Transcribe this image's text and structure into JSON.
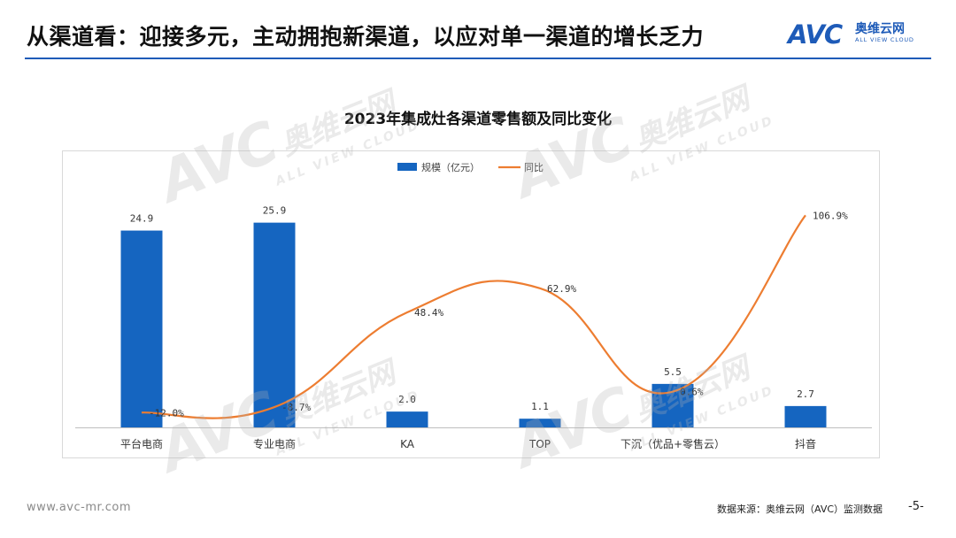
{
  "slide": {
    "title": "从渠道看：迎接多元，主动拥抱新渠道，以应对单一渠道的增长乏力",
    "logo": {
      "mark": "AVC",
      "cn": "奥维云网",
      "en": "ALL VIEW CLOUD"
    },
    "accent_color": "#1e5bb8"
  },
  "watermark": {
    "mark": "AVC",
    "cn": "奥维云网",
    "en": "ALL VIEW CLOUD"
  },
  "footer": {
    "url": "www.avc-mr.com",
    "source": "数据来源：奥维云网（AVC）监测数据",
    "page": "-5-"
  },
  "chart_data": {
    "type": "bar",
    "title": "2023年集成灶各渠道零售额及同比变化",
    "categories": [
      "平台电商",
      "专业电商",
      "KA",
      "TOP",
      "下沉（优品+零售云）",
      "抖音"
    ],
    "series": [
      {
        "name": "规模（亿元）",
        "type": "bar",
        "axis": "left",
        "color": "#1565c0",
        "values": [
          24.9,
          25.9,
          2.0,
          1.1,
          5.5,
          2.7
        ],
        "labels": [
          "24.9",
          "25.9",
          "2.0",
          "1.1",
          "5.5",
          "2.7"
        ]
      },
      {
        "name": "同比",
        "type": "line",
        "smooth": true,
        "axis": "right",
        "color": "#ed7d31",
        "values": [
          -12.0,
          -8.7,
          48.4,
          62.9,
          0.6,
          106.9
        ],
        "labels": [
          "-12.0%",
          "-8.7%",
          "48.4%",
          "62.9%",
          "0.6%",
          "106.9%"
        ]
      }
    ],
    "left_axis": {
      "min": 0,
      "max": 30,
      "visible": false
    },
    "right_axis": {
      "min": -30,
      "max": 130,
      "visible": false
    },
    "legend": "top-center",
    "grid": false
  }
}
